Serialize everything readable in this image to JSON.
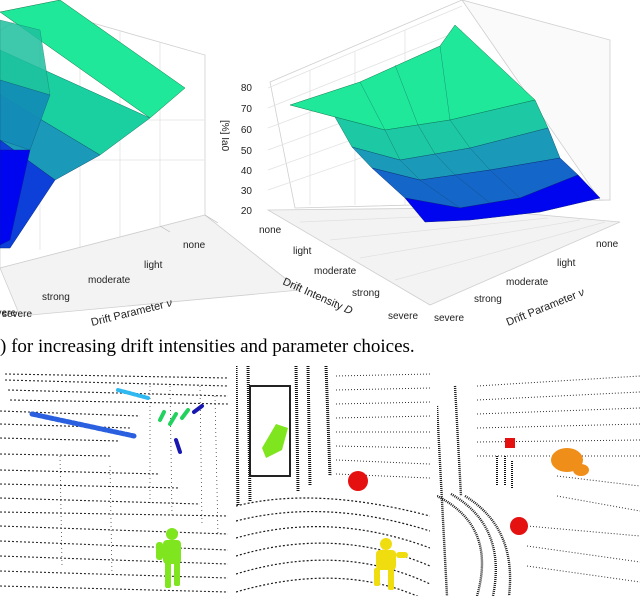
{
  "caption_fragment": ") for increasing drift intensities and parameter choices.",
  "left_plot": {
    "param_tick_labels": [
      "none",
      "light",
      "moderate",
      "strong",
      "severe"
    ],
    "param_axis_label": "Drift Parameter",
    "param_axis_symbol": "ν",
    "intensity_tick_labels": [
      "severe"
    ]
  },
  "right_plot": {
    "z_ticks": [
      "80",
      "70",
      "60",
      "50",
      "40",
      "30",
      "20"
    ],
    "z_axis_label": "[%] Ia0",
    "intensity_tick_labels": [
      "none",
      "light",
      "moderate",
      "strong",
      "severe"
    ],
    "intensity_axis_label": "Drift Intensity",
    "intensity_axis_symbol": "D",
    "param_tick_labels": [
      "none",
      "light",
      "moderate",
      "strong",
      "severe"
    ],
    "param_axis_label": "Drift Parameter",
    "param_axis_symbol": "ν"
  },
  "colors": {
    "surface_high": "#1fe89a",
    "surface_mid": "#1a9ab8",
    "surface_low": "#0005f0",
    "human_green": "#7ee51f",
    "human_yellow": "#f0dd10",
    "object_orange": "#f08e1a",
    "marker_red": "#e51010",
    "track_blue": "#2a5fe0",
    "track_cyan": "#30b8f0",
    "track_green": "#22d25f",
    "track_navy": "#1818b0"
  }
}
